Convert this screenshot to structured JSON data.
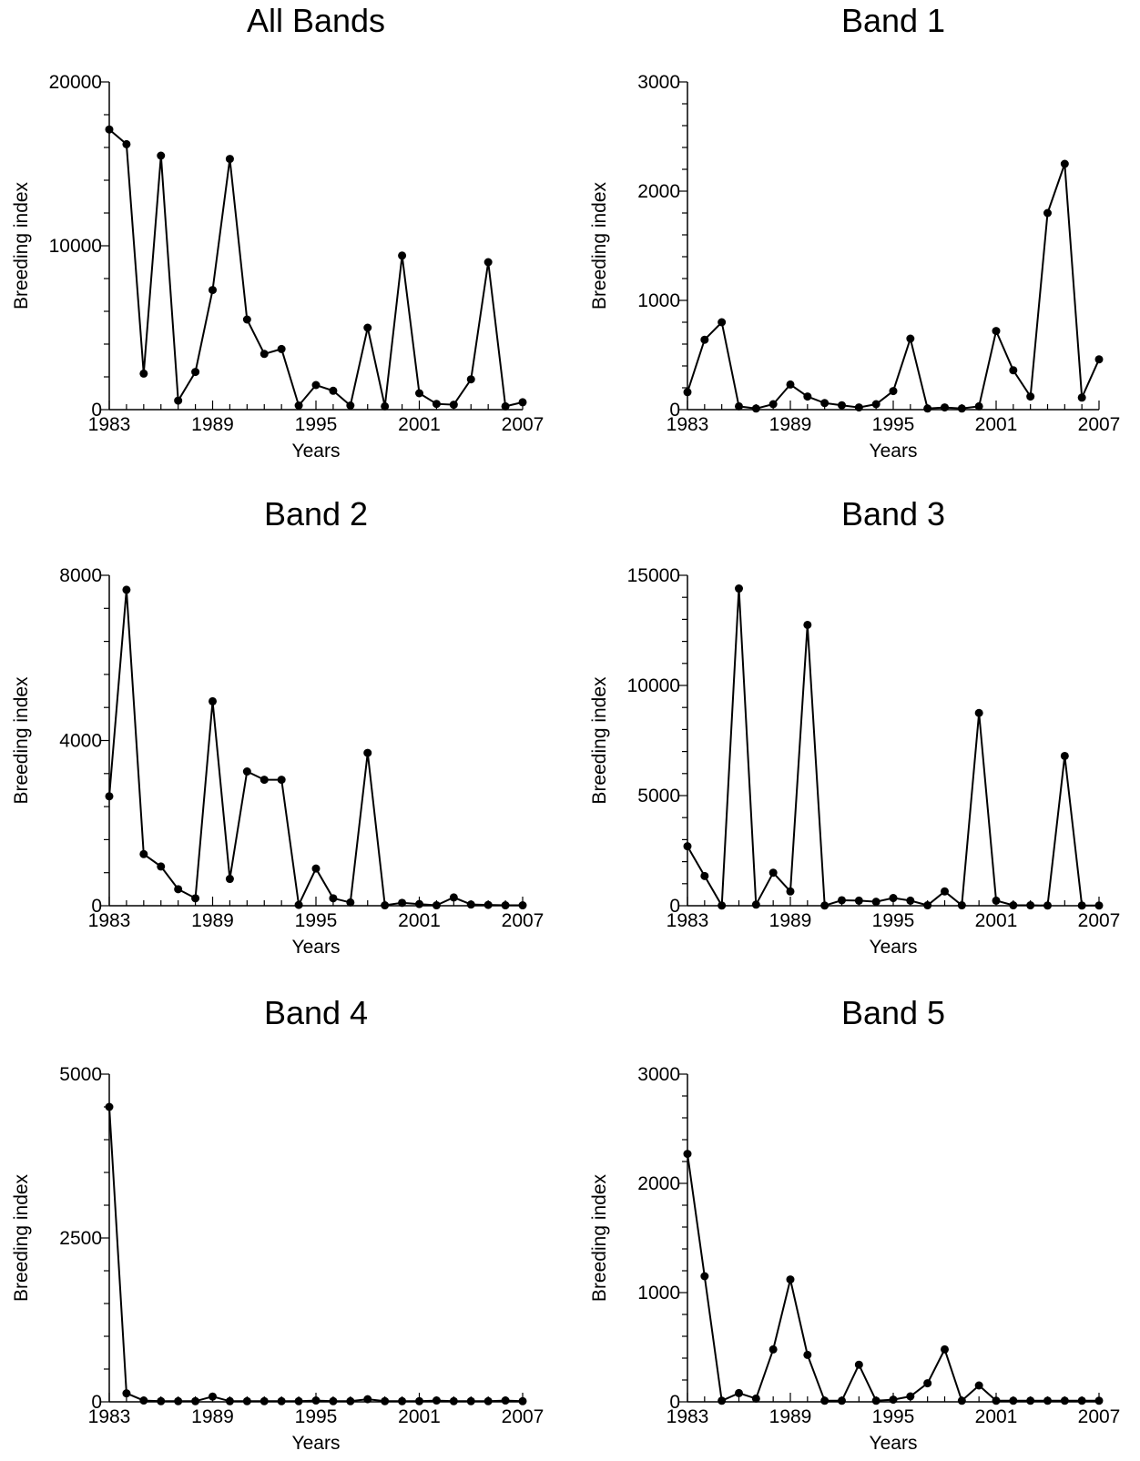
{
  "chart_data": [
    {
      "type": "line",
      "title": "All Bands",
      "xlabel": "Years",
      "ylabel": "Breeding index",
      "xlim": [
        1983,
        2007
      ],
      "ylim": [
        0,
        20000
      ],
      "xticks": [
        "1983",
        "1989",
        "1995",
        "2001",
        "2007"
      ],
      "yticks": [
        "0",
        "10000",
        "20000"
      ],
      "grid": false,
      "x": [
        1983,
        1984,
        1985,
        1986,
        1987,
        1988,
        1989,
        1990,
        1991,
        1992,
        1993,
        1994,
        1995,
        1996,
        1997,
        1998,
        1999,
        2000,
        2001,
        2002,
        2003,
        2004,
        2005,
        2006,
        2007
      ],
      "values": [
        17100,
        16200,
        2200,
        15500,
        550,
        2300,
        7300,
        15300,
        5500,
        3400,
        3700,
        250,
        1500,
        1150,
        250,
        5000,
        200,
        9400,
        1000,
        350,
        300,
        1850,
        9000,
        200,
        450
      ]
    },
    {
      "type": "line",
      "title": "Band 1",
      "xlabel": "Years",
      "ylabel": "Breeding index",
      "xlim": [
        1983,
        2007
      ],
      "ylim": [
        0,
        3000
      ],
      "xticks": [
        "1983",
        "1989",
        "1995",
        "2001",
        "2007"
      ],
      "yticks": [
        "0",
        "1000",
        "2000",
        "3000"
      ],
      "grid": false,
      "x": [
        1983,
        1984,
        1985,
        1986,
        1987,
        1988,
        1989,
        1990,
        1991,
        1992,
        1993,
        1994,
        1995,
        1996,
        1997,
        1998,
        1999,
        2000,
        2001,
        2002,
        2003,
        2004,
        2005,
        2006,
        2007
      ],
      "values": [
        160,
        640,
        800,
        30,
        10,
        50,
        230,
        120,
        60,
        40,
        20,
        50,
        170,
        650,
        10,
        20,
        10,
        30,
        720,
        360,
        120,
        1800,
        2250,
        110,
        460
      ]
    },
    {
      "type": "line",
      "title": "Band 2",
      "xlabel": "Years",
      "ylabel": "Breeding index",
      "xlim": [
        1983,
        2007
      ],
      "ylim": [
        0,
        8000
      ],
      "xticks": [
        "1983",
        "1989",
        "1995",
        "2001",
        "2007"
      ],
      "yticks": [
        "0",
        "4000",
        "8000"
      ],
      "grid": false,
      "x": [
        1983,
        1984,
        1985,
        1986,
        1987,
        1988,
        1989,
        1990,
        1991,
        1992,
        1993,
        1994,
        1995,
        1996,
        1997,
        1998,
        1999,
        2000,
        2001,
        2002,
        2003,
        2004,
        2005,
        2006,
        2007
      ],
      "values": [
        2650,
        7650,
        1250,
        950,
        400,
        180,
        4950,
        650,
        3250,
        3050,
        3050,
        20,
        900,
        180,
        80,
        3700,
        10,
        70,
        40,
        10,
        200,
        30,
        20,
        10,
        10
      ]
    },
    {
      "type": "line",
      "title": "Band 3",
      "xlabel": "Years",
      "ylabel": "Breeding index",
      "xlim": [
        1983,
        2007
      ],
      "ylim": [
        0,
        15000
      ],
      "xticks": [
        "1983",
        "1989",
        "1995",
        "2001",
        "2007"
      ],
      "yticks": [
        "0",
        "5000",
        "10000",
        "15000"
      ],
      "grid": false,
      "x": [
        1983,
        1984,
        1985,
        1986,
        1987,
        1988,
        1989,
        1990,
        1991,
        1992,
        1993,
        1994,
        1995,
        1996,
        1997,
        1998,
        1999,
        2000,
        2001,
        2002,
        2003,
        2004,
        2005,
        2006,
        2007
      ],
      "values": [
        2700,
        1350,
        10,
        14400,
        50,
        1500,
        650,
        12750,
        10,
        250,
        230,
        180,
        350,
        230,
        20,
        650,
        20,
        8750,
        230,
        20,
        20,
        10,
        6800,
        10,
        10
      ]
    },
    {
      "type": "line",
      "title": "Band 4",
      "xlabel": "Years",
      "ylabel": "Breeding index",
      "xlim": [
        1983,
        2007
      ],
      "ylim": [
        0,
        5000
      ],
      "xticks": [
        "1983",
        "1989",
        "1995",
        "2001",
        "2007"
      ],
      "yticks": [
        "0",
        "2500",
        "5000"
      ],
      "grid": false,
      "x": [
        1983,
        1984,
        1985,
        1986,
        1987,
        1988,
        1989,
        1990,
        1991,
        1992,
        1993,
        1994,
        1995,
        1996,
        1997,
        1998,
        1999,
        2000,
        2001,
        2002,
        2003,
        2004,
        2005,
        2006,
        2007
      ],
      "values": [
        4500,
        130,
        20,
        10,
        10,
        10,
        80,
        10,
        10,
        10,
        10,
        10,
        20,
        10,
        10,
        40,
        10,
        10,
        10,
        20,
        10,
        10,
        10,
        20,
        10
      ]
    },
    {
      "type": "line",
      "title": "Band 5",
      "xlabel": "Years",
      "ylabel": "Breeding index",
      "xlim": [
        1983,
        2007
      ],
      "ylim": [
        0,
        3000
      ],
      "xticks": [
        "1983",
        "1989",
        "1995",
        "2001",
        "2007"
      ],
      "yticks": [
        "0",
        "1000",
        "2000",
        "3000"
      ],
      "grid": false,
      "x": [
        1983,
        1984,
        1985,
        1986,
        1987,
        1988,
        1989,
        1990,
        1991,
        1992,
        1993,
        1994,
        1995,
        1996,
        1997,
        1998,
        1999,
        2000,
        2001,
        2002,
        2003,
        2004,
        2005,
        2006,
        2007
      ],
      "values": [
        2270,
        1150,
        10,
        80,
        30,
        480,
        1120,
        430,
        10,
        10,
        340,
        10,
        20,
        50,
        170,
        480,
        10,
        150,
        10,
        10,
        10,
        10,
        10,
        10,
        10
      ]
    }
  ]
}
